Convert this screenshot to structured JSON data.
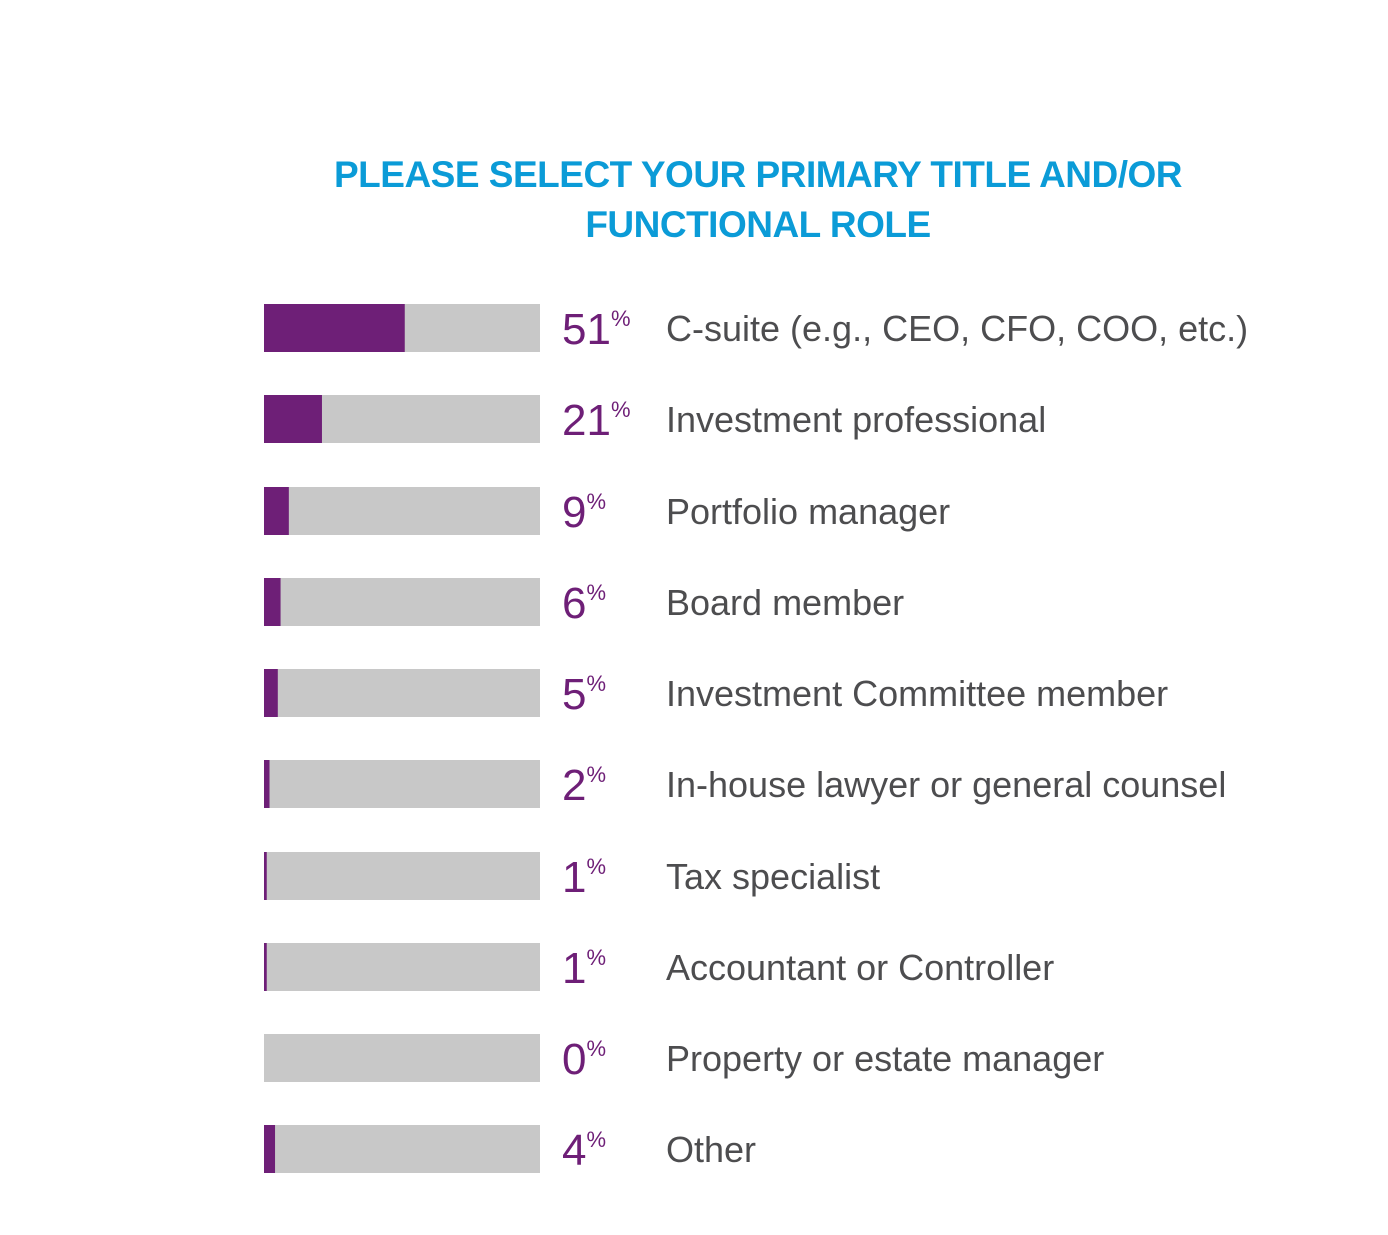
{
  "chart_data": {
    "type": "bar",
    "title_lines": [
      "PLEASE SELECT YOUR PRIMARY TITLE AND/OR",
      "FUNCTIONAL ROLE"
    ],
    "categories": [
      "C-suite (e.g., CEO, CFO, COO, etc.)",
      "Investment professional",
      "Portfolio manager",
      "Board member",
      "Investment Committee member",
      "In-house lawyer or general counsel",
      "Tax specialist",
      "Accountant or Controller",
      "Property or estate manager",
      "Other"
    ],
    "values": [
      51,
      21,
      9,
      6,
      5,
      2,
      1,
      1,
      0,
      4
    ],
    "value_suffix": "%",
    "xlim": [
      0,
      100
    ],
    "orientation": "horizontal",
    "grid": false,
    "legend": "none",
    "colors": {
      "bar": "#6e1f77",
      "track": "#c8c8c8",
      "title": "#0b9bd7",
      "value_text": "#6e1f77",
      "category_text": "#4d4d4f"
    }
  }
}
